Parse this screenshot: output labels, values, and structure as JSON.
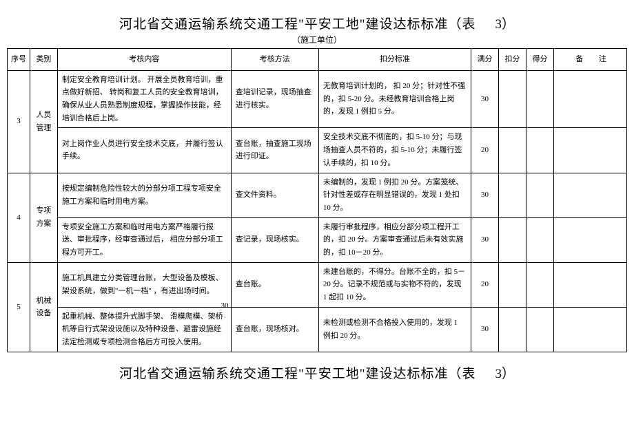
{
  "page": {
    "title_main": "河北省交通运输系统交通工程\"平安工地\"建设达标标准（表",
    "title_num": "3）",
    "subtitle": "（施工单位）",
    "bottom_title": "河北省交通运输系统交通工程\"平安工地\"建设达标标准（表",
    "bottom_num": "3）"
  },
  "headers": {
    "seq": "序号",
    "cat": "类别",
    "content": "考核内容",
    "method": "考核方法",
    "standard": "扣分标准",
    "full": "满分",
    "deduct": "扣分",
    "got": "得分",
    "note": "备  注"
  },
  "groups": [
    {
      "seq": "3",
      "cat": "人员管理",
      "rows": [
        {
          "content": "制定安全教育培训计划。  开展全员教育培训，重点做好新招、 转岗和复工人员的安全教育培训，确保从业人员熟悉制度规程，掌握操作技能，经培训合格后上岗。",
          "method": "查培训记录，现场抽查进行核实。",
          "standard": "无教育培训计划的，  扣 20 分；针对性不强的，扣 5-20 分。未经教育培训合格上岗的，发现  1 例扣 5 分。",
          "full": "30"
        },
        {
          "content": "对上岗作业人员进行安全技术交底，    并履行签认手续。",
          "method": "查台账，抽查施工现场进行印证。",
          "standard": "安全技术交底不彻底的，扣    5-10 分；与现场抽查人员不符的，扣    5-10 分；未履行签认手续的，扣   10 分。",
          "full": "20"
        }
      ]
    },
    {
      "seq": "4",
      "cat": "专项方案",
      "rows": [
        {
          "content": "按规定编制危险性较大的分部分项工程专项安全施工方案和临时用电方案。",
          "method": "查文件资料。",
          "standard": "未编制的，发现 1 例扣 20 分。方案笼统、针对性差或存在明显错误的，发现 1 处扣  10 分。",
          "full": "30"
        },
        {
          "content": "专项安全施工方案和临时用电方案严格履行报送、审批程序，经审查通过后， 相应分部分项工程方可开工。",
          "method": "查记录，现场核实。",
          "standard": "未履行审批程序，相应分部分项工程开工的，扣 20 分。方案审查通过后未有效实施的，扣   10－20 分。",
          "full": "30"
        }
      ]
    },
    {
      "seq": "5",
      "cat": "机械设备",
      "rows": [
        {
          "content": "施工机具建立分类管理台账，    大型设备及模板、架设系统，做到\"一机一档\"    ，有进出场时间。",
          "method": "查台账。",
          "standard": "未建台账的，不得分。台账不全的，扣 5－20 分。记录不规范或与实物不符的，发现  1 起扣  10 分。",
          "full": "20"
        },
        {
          "content": "起重机械、整体提升式脚手架、  滑模爬模、架桥机等自行式架设设施以及特种设备、避雷设施经法定检测或专项检测合格后方可投入使用。",
          "method": "查台账，现场核对。",
          "standard": "未检测或检测不合格投入使用的，发现 1 例扣 20 分。",
          "full": "30"
        }
      ]
    }
  ],
  "stray_number": "30",
  "style": {
    "background": "#ffffff",
    "text_color": "#000000",
    "border_color": "#000000",
    "title_fontsize": 19,
    "body_fontsize": 11,
    "subtitle_fontsize": 12
  }
}
